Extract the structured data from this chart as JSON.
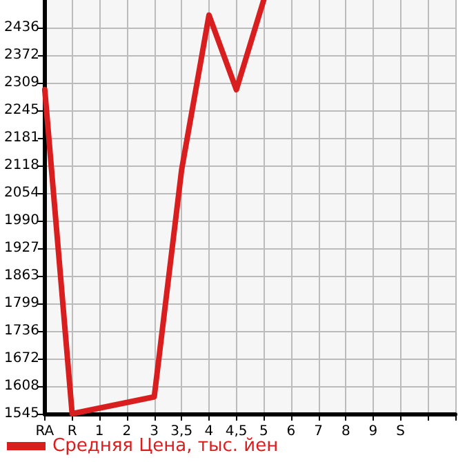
{
  "chart_data": {
    "type": "line",
    "categories": [
      "RA",
      "R",
      "1",
      "2",
      "3",
      "3,5",
      "4",
      "4,5",
      "5",
      "6",
      "7",
      "8",
      "9",
      "S",
      null,
      null
    ],
    "series": [
      {
        "name": "Средняя Цена, тыс. йен",
        "color": "#d81e1e",
        "values": [
          2293,
          1545,
          null,
          null,
          1584,
          2108,
          2465,
          2293,
          2500,
          null,
          null,
          null,
          null,
          null,
          null,
          null
        ]
      }
    ],
    "ylim": [
      1545,
      2500
    ],
    "yticks": [
      1545,
      1608,
      1672,
      1736,
      1799,
      1863,
      1927,
      1990,
      2054,
      2118,
      2181,
      2245,
      2309,
      2372,
      2436
    ],
    "grid": true,
    "legend": "bottom",
    "marker": "none",
    "line_style": "solid"
  }
}
